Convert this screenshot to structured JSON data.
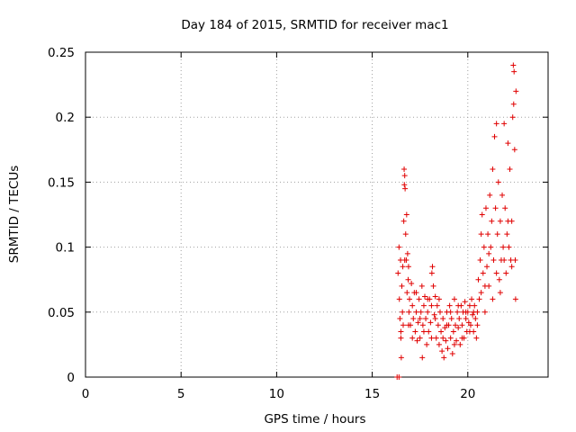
{
  "chart_data": {
    "type": "scatter",
    "title": "Day 184 of 2015, SRMTID for receiver mac1",
    "xlabel": "GPS time / hours",
    "ylabel": "SRMTID / TECUs",
    "xlim": [
      0,
      24.2
    ],
    "ylim": [
      0,
      0.25
    ],
    "xticks": [
      0,
      5,
      10,
      15,
      20
    ],
    "xtick_labels": [
      "0",
      "5",
      "10",
      "15",
      "20"
    ],
    "yticks": [
      0,
      0.05,
      0.1,
      0.15,
      0.2,
      0.25
    ],
    "ytick_labels": [
      "0",
      "0.05",
      "0.1",
      "0.15",
      "0.2",
      "0.25"
    ],
    "grid": true,
    "marker": "+",
    "series": [
      {
        "name": "SRMTID mac1",
        "color": "#e00000",
        "points": [
          [
            16.3,
            0.0
          ],
          [
            16.4,
            0.0
          ],
          [
            16.35,
            0.08
          ],
          [
            16.4,
            0.1
          ],
          [
            16.42,
            0.06
          ],
          [
            16.45,
            0.045
          ],
          [
            16.48,
            0.09
          ],
          [
            16.5,
            0.03
          ],
          [
            16.52,
            0.015
          ],
          [
            16.55,
            0.07
          ],
          [
            16.58,
            0.05
          ],
          [
            16.6,
            0.085
          ],
          [
            16.62,
            0.04
          ],
          [
            16.65,
            0.12
          ],
          [
            16.67,
            0.16
          ],
          [
            16.68,
            0.148
          ],
          [
            16.7,
            0.155
          ],
          [
            16.72,
            0.145
          ],
          [
            16.75,
            0.11
          ],
          [
            16.78,
            0.09
          ],
          [
            16.8,
            0.125
          ],
          [
            16.82,
            0.065
          ],
          [
            16.85,
            0.095
          ],
          [
            16.88,
            0.075
          ],
          [
            16.9,
            0.085
          ],
          [
            16.92,
            0.05
          ],
          [
            16.95,
            0.06
          ],
          [
            17.0,
            0.04
          ],
          [
            17.05,
            0.072
          ],
          [
            17.1,
            0.055
          ],
          [
            17.15,
            0.045
          ],
          [
            17.2,
            0.065
          ],
          [
            17.25,
            0.035
          ],
          [
            17.3,
            0.05
          ],
          [
            17.35,
            0.028
          ],
          [
            17.4,
            0.042
          ],
          [
            17.45,
            0.06
          ],
          [
            17.5,
            0.03
          ],
          [
            17.55,
            0.05
          ],
          [
            17.6,
            0.07
          ],
          [
            17.62,
            0.015
          ],
          [
            17.65,
            0.04
          ],
          [
            17.7,
            0.055
          ],
          [
            17.75,
            0.062
          ],
          [
            17.8,
            0.045
          ],
          [
            17.85,
            0.025
          ],
          [
            17.9,
            0.05
          ],
          [
            17.95,
            0.035
          ],
          [
            18.0,
            0.06
          ],
          [
            18.05,
            0.042
          ],
          [
            18.1,
            0.055
          ],
          [
            18.12,
            0.08
          ],
          [
            18.15,
            0.085
          ],
          [
            18.2,
            0.07
          ],
          [
            18.25,
            0.048
          ],
          [
            18.3,
            0.062
          ],
          [
            18.35,
            0.03
          ],
          [
            18.4,
            0.055
          ],
          [
            18.45,
            0.04
          ],
          [
            18.5,
            0.025
          ],
          [
            18.55,
            0.05
          ],
          [
            18.6,
            0.035
          ],
          [
            18.65,
            0.02
          ],
          [
            18.7,
            0.045
          ],
          [
            18.75,
            0.015
          ],
          [
            18.8,
            0.038
          ],
          [
            18.85,
            0.028
          ],
          [
            18.9,
            0.05
          ],
          [
            18.95,
            0.022
          ],
          [
            19.0,
            0.04
          ],
          [
            19.05,
            0.055
          ],
          [
            19.1,
            0.03
          ],
          [
            19.15,
            0.045
          ],
          [
            19.2,
            0.018
          ],
          [
            19.25,
            0.035
          ],
          [
            19.3,
            0.06
          ],
          [
            19.35,
            0.04
          ],
          [
            19.4,
            0.028
          ],
          [
            19.45,
            0.05
          ],
          [
            19.5,
            0.038
          ],
          [
            19.55,
            0.045
          ],
          [
            19.6,
            0.025
          ],
          [
            19.65,
            0.055
          ],
          [
            19.7,
            0.04
          ],
          [
            19.75,
            0.05
          ],
          [
            19.8,
            0.03
          ],
          [
            19.85,
            0.058
          ],
          [
            19.9,
            0.045
          ],
          [
            19.95,
            0.035
          ],
          [
            20.0,
            0.05
          ],
          [
            20.05,
            0.042
          ],
          [
            20.1,
            0.055
          ],
          [
            20.15,
            0.04
          ],
          [
            20.2,
            0.06
          ],
          [
            20.25,
            0.048
          ],
          [
            20.3,
            0.035
          ],
          [
            20.35,
            0.055
          ],
          [
            20.4,
            0.045
          ],
          [
            20.45,
            0.03
          ],
          [
            20.5,
            0.05
          ],
          [
            20.55,
            0.075
          ],
          [
            20.6,
            0.06
          ],
          [
            20.65,
            0.09
          ],
          [
            20.7,
            0.11
          ],
          [
            20.75,
            0.125
          ],
          [
            20.8,
            0.08
          ],
          [
            20.85,
            0.1
          ],
          [
            20.9,
            0.07
          ],
          [
            20.95,
            0.13
          ],
          [
            21.0,
            0.085
          ],
          [
            21.05,
            0.11
          ],
          [
            21.1,
            0.095
          ],
          [
            21.15,
            0.14
          ],
          [
            21.2,
            0.1
          ],
          [
            21.25,
            0.12
          ],
          [
            21.3,
            0.16
          ],
          [
            21.35,
            0.09
          ],
          [
            21.4,
            0.185
          ],
          [
            21.45,
            0.13
          ],
          [
            21.5,
            0.195
          ],
          [
            21.55,
            0.11
          ],
          [
            21.6,
            0.15
          ],
          [
            21.65,
            0.075
          ],
          [
            21.7,
            0.12
          ],
          [
            21.75,
            0.09
          ],
          [
            21.8,
            0.14
          ],
          [
            21.85,
            0.1
          ],
          [
            21.9,
            0.195
          ],
          [
            21.95,
            0.13
          ],
          [
            22.0,
            0.08
          ],
          [
            22.05,
            0.11
          ],
          [
            22.1,
            0.18
          ],
          [
            22.15,
            0.1
          ],
          [
            22.2,
            0.16
          ],
          [
            22.25,
            0.09
          ],
          [
            22.3,
            0.12
          ],
          [
            22.35,
            0.2
          ],
          [
            22.38,
            0.24
          ],
          [
            22.4,
            0.21
          ],
          [
            22.42,
            0.235
          ],
          [
            22.45,
            0.175
          ],
          [
            22.48,
            0.09
          ],
          [
            22.5,
            0.06
          ],
          [
            22.52,
            0.22
          ],
          [
            16.5,
            0.035
          ],
          [
            16.7,
            0.09
          ],
          [
            16.9,
            0.04
          ],
          [
            17.1,
            0.03
          ],
          [
            17.3,
            0.065
          ],
          [
            17.5,
            0.045
          ],
          [
            17.7,
            0.035
          ],
          [
            17.9,
            0.06
          ],
          [
            18.1,
            0.03
          ],
          [
            18.3,
            0.045
          ],
          [
            18.5,
            0.06
          ],
          [
            18.7,
            0.03
          ],
          [
            18.9,
            0.04
          ],
          [
            19.1,
            0.05
          ],
          [
            19.3,
            0.025
          ],
          [
            19.5,
            0.055
          ],
          [
            19.7,
            0.03
          ],
          [
            19.9,
            0.05
          ],
          [
            20.1,
            0.035
          ],
          [
            20.3,
            0.05
          ],
          [
            20.5,
            0.04
          ],
          [
            20.7,
            0.065
          ],
          [
            20.9,
            0.05
          ],
          [
            21.1,
            0.07
          ],
          [
            21.3,
            0.06
          ],
          [
            21.5,
            0.08
          ],
          [
            21.7,
            0.065
          ],
          [
            21.9,
            0.09
          ],
          [
            22.1,
            0.12
          ],
          [
            22.3,
            0.085
          ]
        ]
      }
    ]
  }
}
